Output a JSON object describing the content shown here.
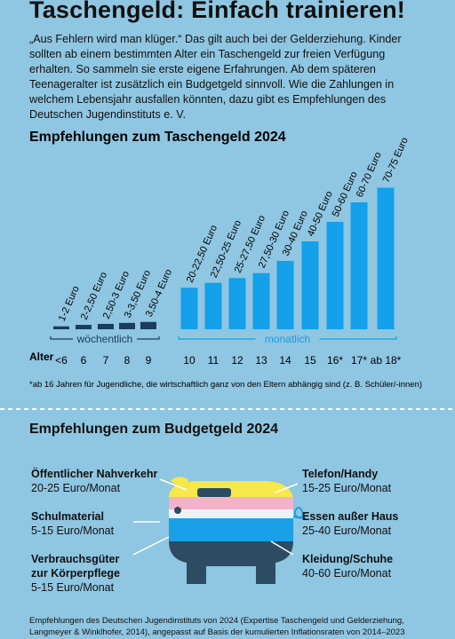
{
  "header": {
    "title": "Taschengeld: Einfach trainieren!",
    "intro": "„Aus Fehlern wird man klüger.“ Das gilt auch bei der Gelderziehung. Kinder sollten ab einem bestimmten Alter ein Taschengeld zur freien Verfügung erhalten. So sammeln sie erste eigene Erfahrungen. Ab dem späteren Teenageralter ist zusätzlich ein Budgetgeld sinnvoll. Wie die Zahlungen in welchem Lebensjahr ausfallen könnten, dazu gibt es Empfehlungen des Deutschen Jugendinstituts e. V."
  },
  "chart_data": {
    "type": "bar",
    "title": "Empfehlungen zum Taschengeld 2024",
    "x_label": "Alter",
    "series": [
      {
        "name": "wöchentlich",
        "color": "#1b3c5c",
        "categories": [
          "<6",
          "6",
          "7",
          "8",
          "9"
        ],
        "low": [
          1,
          2,
          2.5,
          3,
          3.5
        ],
        "high": [
          2,
          2.5,
          3,
          3.5,
          4
        ],
        "value_labels": [
          "1-2 Euro",
          "2-2,50 Euro",
          "2,50-3 Euro",
          "3-3,50 Euro",
          "3,50-4 Euro"
        ]
      },
      {
        "name": "monatlich",
        "color": "#14a0ea",
        "categories": [
          "10",
          "11",
          "12",
          "13",
          "14",
          "15",
          "16*",
          "17*",
          "ab 18*"
        ],
        "low": [
          20,
          22.5,
          25,
          27.5,
          30,
          40,
          50,
          60,
          70
        ],
        "high": [
          22.5,
          25,
          27.5,
          30,
          40,
          50,
          60,
          70,
          75
        ],
        "value_labels": [
          "20-22,50 Euro",
          "22,50-25 Euro",
          "25-27,50 Euro",
          "27,50-30 Euro",
          "30-40 Euro",
          "40-50 Euro",
          "50-60 Euro",
          "60-70 Euro",
          "70-75 Euro"
        ]
      }
    ],
    "footnote": "*ab 16 Jahren für Jugendliche, die wirtschaftlich ganz von den Eltern abhängig sind (z. B. Schüler/-innen)"
  },
  "budget": {
    "title": "Empfehlungen zum Budgetgeld 2024",
    "left": [
      {
        "name": "Öffentlicher Nahverkehr",
        "amount": "20-25 Euro/Monat"
      },
      {
        "name": "Schulmaterial",
        "amount": "5-15 Euro/Monat"
      },
      {
        "name": "Verbrauchsgüter zur Körperpflege",
        "amount": "5-15 Euro/Monat"
      }
    ],
    "right": [
      {
        "name": "Telefon/Handy",
        "amount": "15-25 Euro/Monat"
      },
      {
        "name": "Essen außer Haus",
        "amount": "25-40 Euro/Monat"
      },
      {
        "name": "Kleidung/Schuhe",
        "amount": "40-60 Euro/Monat"
      }
    ]
  },
  "footer": {
    "source": "Empfehlungen des Deutschen Jugendinstituts von 2024 (Expertise Taschengeld und Gelderziehung, Langmeyer & Winklhofer, 2014), angepasst auf Basis der kumulierten Inflationsraten von 2014–2023"
  }
}
